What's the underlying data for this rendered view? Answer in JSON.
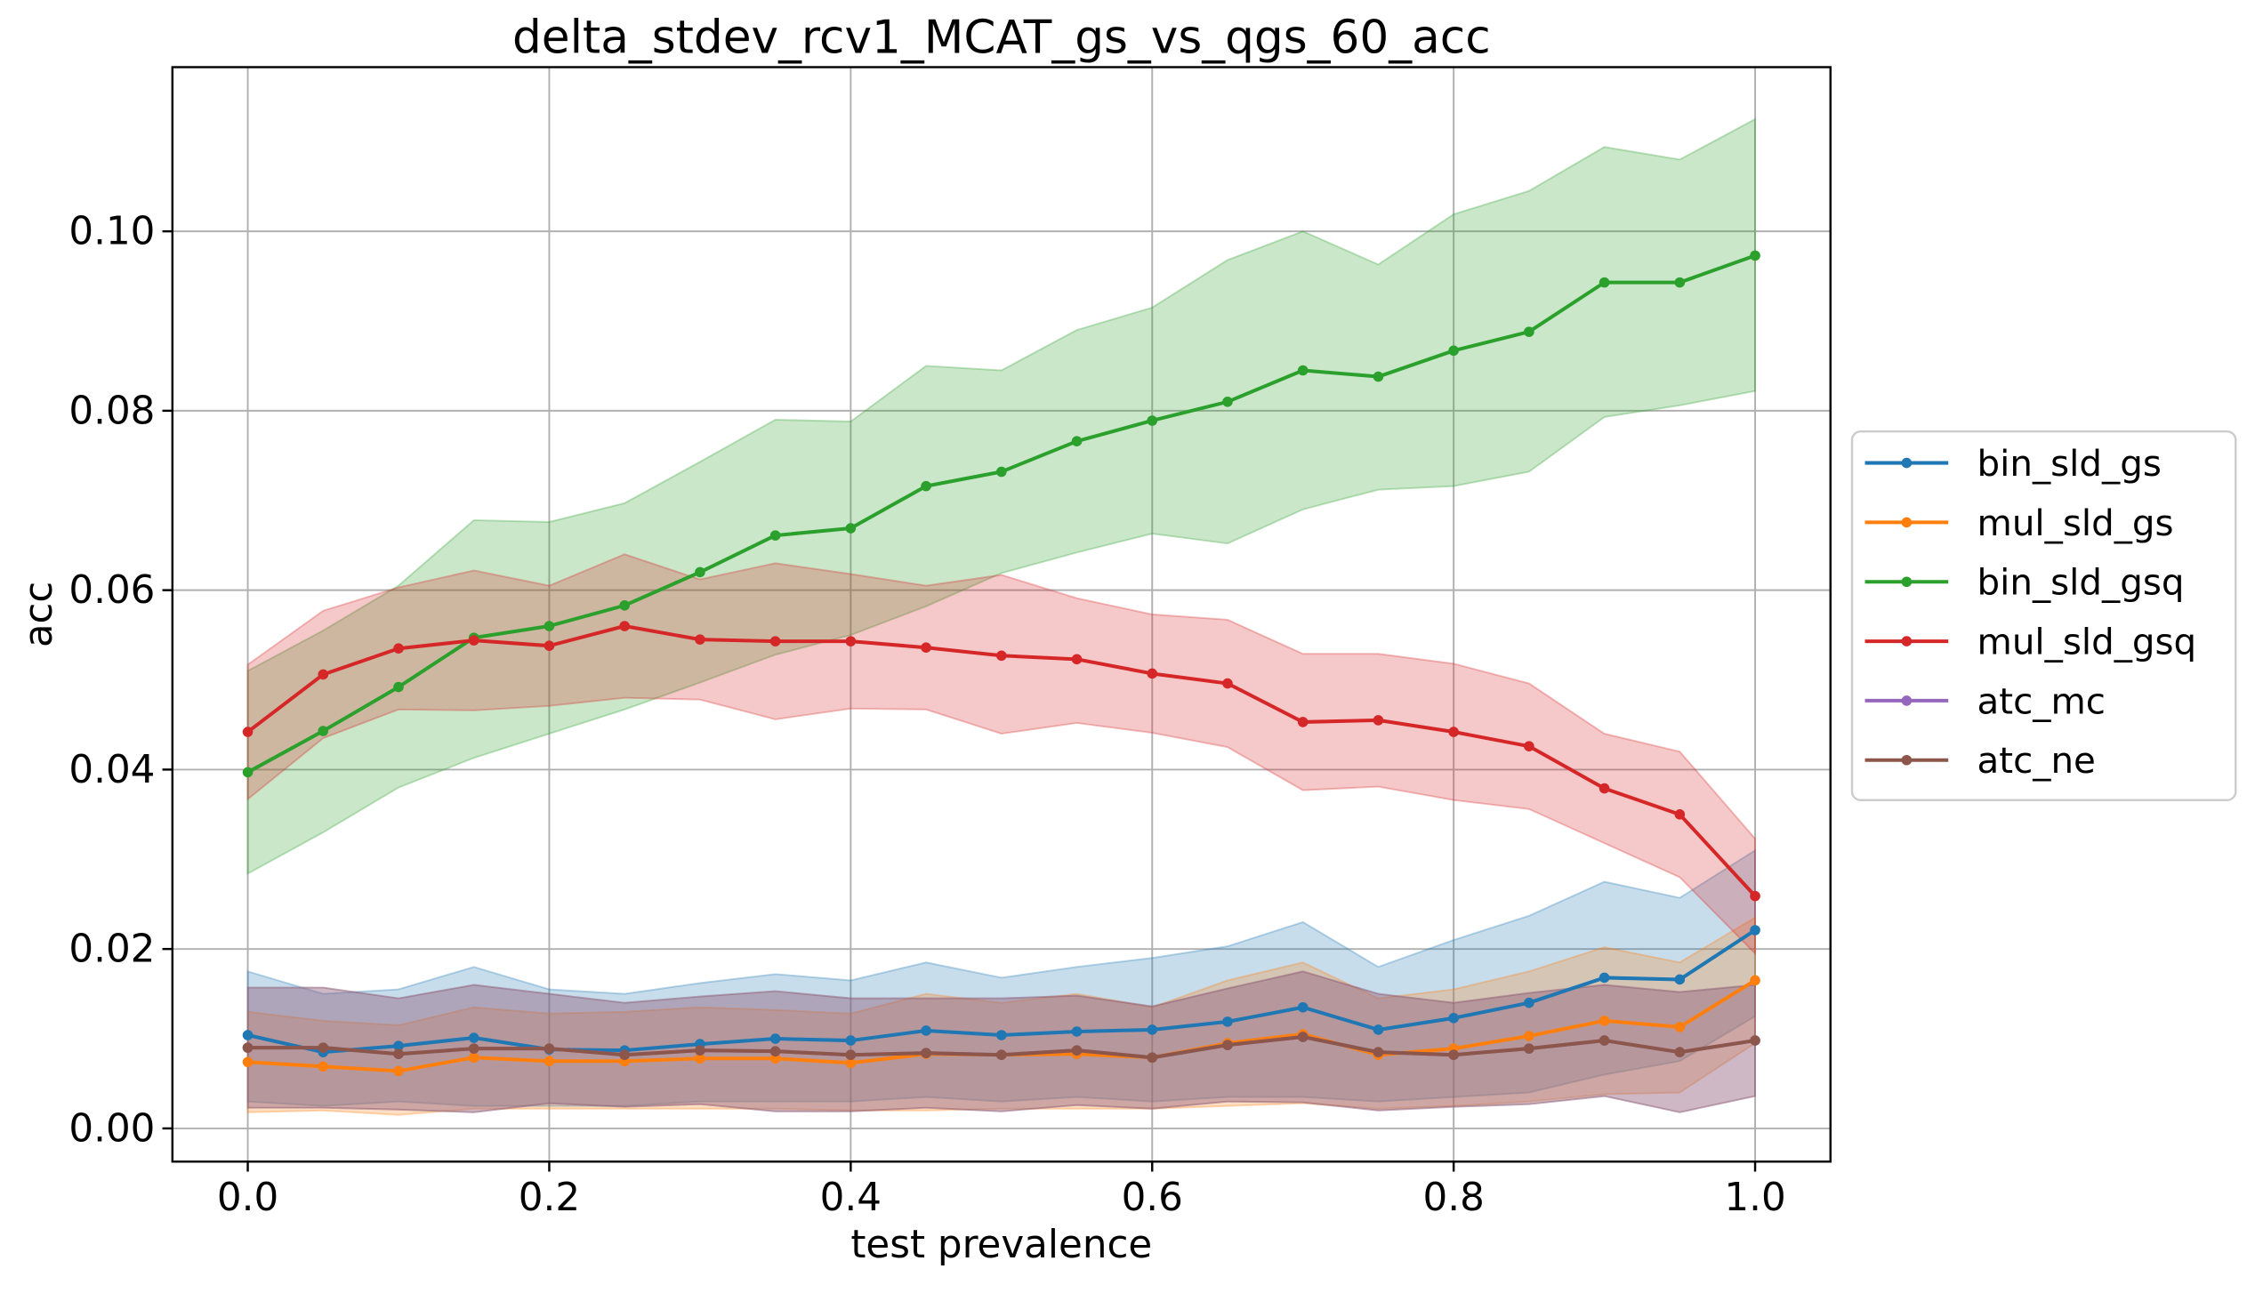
{
  "chart_data": {
    "type": "line",
    "title": "delta_stdev_rcv1_MCAT_gs_vs_qgs_60_acc",
    "xlabel": "test prevalence",
    "ylabel": "acc",
    "xlim": [
      -0.05,
      1.05
    ],
    "ylim": [
      -0.0037,
      0.1183
    ],
    "x": [
      0.0,
      0.05,
      0.1,
      0.15,
      0.2,
      0.25,
      0.3,
      0.35,
      0.4,
      0.45,
      0.5,
      0.55,
      0.6,
      0.65,
      0.7,
      0.75,
      0.8,
      0.85,
      0.9,
      0.95,
      1.0
    ],
    "xticks": [
      0.0,
      0.2,
      0.4,
      0.6,
      0.8,
      1.0
    ],
    "xtick_labels": [
      "0.0",
      "0.2",
      "0.4",
      "0.6",
      "0.8",
      "1.0"
    ],
    "yticks": [
      0.0,
      0.02,
      0.04,
      0.06,
      0.08,
      0.1
    ],
    "ytick_labels": [
      "0.00",
      "0.02",
      "0.04",
      "0.06",
      "0.08",
      "0.10"
    ],
    "grid": true,
    "legend_position": "center-right outside plot",
    "series": [
      {
        "name": "bin_sld_gs",
        "color": "#1f77b4",
        "values": [
          0.0104,
          0.0085,
          0.0092,
          0.0101,
          0.0088,
          0.0087,
          0.0094,
          0.01,
          0.0098,
          0.0109,
          0.0104,
          0.0108,
          0.011,
          0.0119,
          0.0135,
          0.011,
          0.0123,
          0.014,
          0.0168,
          0.0166,
          0.0221
        ],
        "upper": [
          0.0175,
          0.015,
          0.0155,
          0.018,
          0.0155,
          0.015,
          0.0162,
          0.0172,
          0.0165,
          0.0185,
          0.0168,
          0.018,
          0.019,
          0.0203,
          0.023,
          0.018,
          0.021,
          0.0237,
          0.0275,
          0.0257,
          0.031
        ],
        "lower": [
          0.003,
          0.0025,
          0.003,
          0.0025,
          0.0025,
          0.0025,
          0.003,
          0.003,
          0.003,
          0.0035,
          0.003,
          0.0035,
          0.003,
          0.0035,
          0.0035,
          0.003,
          0.0035,
          0.004,
          0.006,
          0.0075,
          0.0125
        ]
      },
      {
        "name": "mul_sld_gs",
        "color": "#ff7f0e",
        "values": [
          0.0074,
          0.0069,
          0.0064,
          0.0079,
          0.0075,
          0.0075,
          0.0078,
          0.0078,
          0.0073,
          0.0083,
          0.0082,
          0.0083,
          0.0079,
          0.0095,
          0.0105,
          0.0082,
          0.0089,
          0.0103,
          0.012,
          0.0113,
          0.0165
        ],
        "upper": [
          0.013,
          0.012,
          0.0115,
          0.0135,
          0.0128,
          0.013,
          0.0135,
          0.0132,
          0.0128,
          0.015,
          0.014,
          0.015,
          0.0135,
          0.0165,
          0.0185,
          0.0145,
          0.0155,
          0.0175,
          0.0202,
          0.0185,
          0.0235
        ],
        "lower": [
          0.0018,
          0.002,
          0.0015,
          0.0022,
          0.0022,
          0.0022,
          0.0022,
          0.0022,
          0.002,
          0.002,
          0.0022,
          0.0022,
          0.0022,
          0.0025,
          0.0028,
          0.0022,
          0.0025,
          0.003,
          0.0038,
          0.004,
          0.0095
        ]
      },
      {
        "name": "bin_sld_gsq",
        "color": "#2ca02c",
        "values": [
          0.0397,
          0.0443,
          0.0492,
          0.0547,
          0.056,
          0.0583,
          0.062,
          0.0661,
          0.0669,
          0.0716,
          0.0732,
          0.0766,
          0.0789,
          0.081,
          0.0845,
          0.0838,
          0.0867,
          0.0888,
          0.0943,
          0.0943,
          0.0973
        ],
        "upper": [
          0.051,
          0.0555,
          0.0605,
          0.0678,
          0.0676,
          0.0697,
          0.0743,
          0.079,
          0.0788,
          0.085,
          0.0845,
          0.089,
          0.0915,
          0.0968,
          0.1,
          0.0963,
          0.1019,
          0.1045,
          0.1094,
          0.108,
          0.1125
        ],
        "lower": [
          0.0284,
          0.033,
          0.038,
          0.0413,
          0.044,
          0.0467,
          0.0497,
          0.0528,
          0.055,
          0.0582,
          0.0619,
          0.0642,
          0.0663,
          0.0652,
          0.069,
          0.0712,
          0.0716,
          0.0732,
          0.0793,
          0.0806,
          0.0822
        ]
      },
      {
        "name": "mul_sld_gsq",
        "color": "#d62728",
        "values": [
          0.0442,
          0.0506,
          0.0535,
          0.0544,
          0.0538,
          0.056,
          0.0545,
          0.0543,
          0.0543,
          0.0536,
          0.0527,
          0.0523,
          0.0507,
          0.0496,
          0.0453,
          0.0455,
          0.0442,
          0.0426,
          0.0379,
          0.035,
          0.0259
        ],
        "upper": [
          0.0517,
          0.0577,
          0.0603,
          0.0622,
          0.0605,
          0.064,
          0.0612,
          0.063,
          0.0618,
          0.0605,
          0.0617,
          0.0591,
          0.0573,
          0.0567,
          0.0529,
          0.0529,
          0.0518,
          0.0496,
          0.044,
          0.042,
          0.0323
        ],
        "lower": [
          0.0367,
          0.0435,
          0.0467,
          0.0466,
          0.0471,
          0.048,
          0.0478,
          0.0456,
          0.0468,
          0.0467,
          0.044,
          0.0452,
          0.0441,
          0.0425,
          0.0377,
          0.0381,
          0.0366,
          0.0356,
          0.0318,
          0.028,
          0.0195
        ]
      },
      {
        "name": "atc_mc",
        "color": "#9467bd",
        "values": [
          0.009,
          0.009,
          0.0083,
          0.0089,
          0.0089,
          0.0082,
          0.0087,
          0.0086,
          0.0082,
          0.0084,
          0.0082,
          0.0087,
          0.0079,
          0.0093,
          0.0102,
          0.0085,
          0.0082,
          0.0089,
          0.0098,
          0.0085,
          0.0098
        ],
        "upper": [
          0.0157,
          0.0157,
          0.0145,
          0.016,
          0.015,
          0.014,
          0.0147,
          0.0153,
          0.0145,
          0.0145,
          0.0145,
          0.0148,
          0.0136,
          0.0156,
          0.0175,
          0.015,
          0.014,
          0.0151,
          0.016,
          0.0152,
          0.016
        ],
        "lower": [
          0.0023,
          0.0023,
          0.0021,
          0.0018,
          0.0028,
          0.0024,
          0.0027,
          0.0019,
          0.0019,
          0.0023,
          0.0019,
          0.0026,
          0.0022,
          0.003,
          0.0029,
          0.002,
          0.0024,
          0.0027,
          0.0036,
          0.0018,
          0.0036
        ]
      },
      {
        "name": "atc_ne",
        "color": "#8c564b",
        "values": [
          0.009,
          0.009,
          0.0083,
          0.0089,
          0.0089,
          0.0082,
          0.0087,
          0.0086,
          0.0082,
          0.0084,
          0.0082,
          0.0087,
          0.0079,
          0.0093,
          0.0102,
          0.0085,
          0.0082,
          0.0089,
          0.0098,
          0.0085,
          0.0098
        ],
        "upper": [
          0.0157,
          0.0157,
          0.0145,
          0.016,
          0.015,
          0.014,
          0.0147,
          0.0153,
          0.0145,
          0.0145,
          0.0145,
          0.0148,
          0.0136,
          0.0156,
          0.0175,
          0.015,
          0.014,
          0.0151,
          0.016,
          0.0152,
          0.016
        ],
        "lower": [
          0.0023,
          0.0023,
          0.0021,
          0.0018,
          0.0028,
          0.0024,
          0.0027,
          0.0019,
          0.0019,
          0.0023,
          0.0019,
          0.0026,
          0.0022,
          0.003,
          0.0029,
          0.002,
          0.0024,
          0.0027,
          0.0036,
          0.0018,
          0.0036
        ]
      }
    ]
  }
}
